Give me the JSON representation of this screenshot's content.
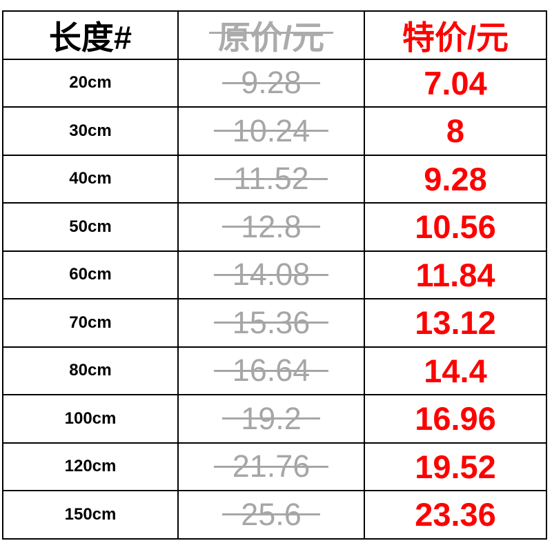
{
  "chart_data": {
    "type": "table",
    "title": "",
    "columns": [
      "长度#",
      "原价/元",
      "特价/元"
    ],
    "rows": [
      [
        "20cm",
        9.28,
        7.04
      ],
      [
        "30cm",
        10.24,
        8
      ],
      [
        "40cm",
        11.52,
        9.28
      ],
      [
        "50cm",
        12.8,
        10.56
      ],
      [
        "60cm",
        14.08,
        11.84
      ],
      [
        "70cm",
        15.36,
        13.12
      ],
      [
        "80cm",
        16.64,
        14.4
      ],
      [
        "100cm",
        19.2,
        16.96
      ],
      [
        "120cm",
        21.76,
        19.52
      ],
      [
        "150cm",
        25.6,
        23.36
      ]
    ],
    "layout": {
      "grid": true,
      "original_price_struck_through": true,
      "header_row": true
    }
  },
  "table": {
    "headers": {
      "length": "长度#",
      "original": "原价/元",
      "special": "特价/元"
    },
    "rows": [
      {
        "length": "20cm",
        "original": "9.28",
        "special": "7.04"
      },
      {
        "length": "30cm",
        "original": "10.24",
        "special": "8"
      },
      {
        "length": "40cm",
        "original": "11.52",
        "special": "9.28"
      },
      {
        "length": "50cm",
        "original": "12.8",
        "special": "10.56"
      },
      {
        "length": "60cm",
        "original": "14.08",
        "special": "11.84"
      },
      {
        "length": "70cm",
        "original": "15.36",
        "special": "13.12"
      },
      {
        "length": "80cm",
        "original": "16.64",
        "special": "14.4"
      },
      {
        "length": "100cm",
        "original": "19.2",
        "special": "16.96"
      },
      {
        "length": "120cm",
        "original": "21.76",
        "special": "19.52"
      },
      {
        "length": "150cm",
        "original": "25.6",
        "special": "23.36"
      }
    ],
    "colors": {
      "header_text": "#000000",
      "original_price_gray": "#a6a6a6",
      "special_price_red": "#ff0000",
      "border": "#000000",
      "background": "#ffffff"
    }
  }
}
